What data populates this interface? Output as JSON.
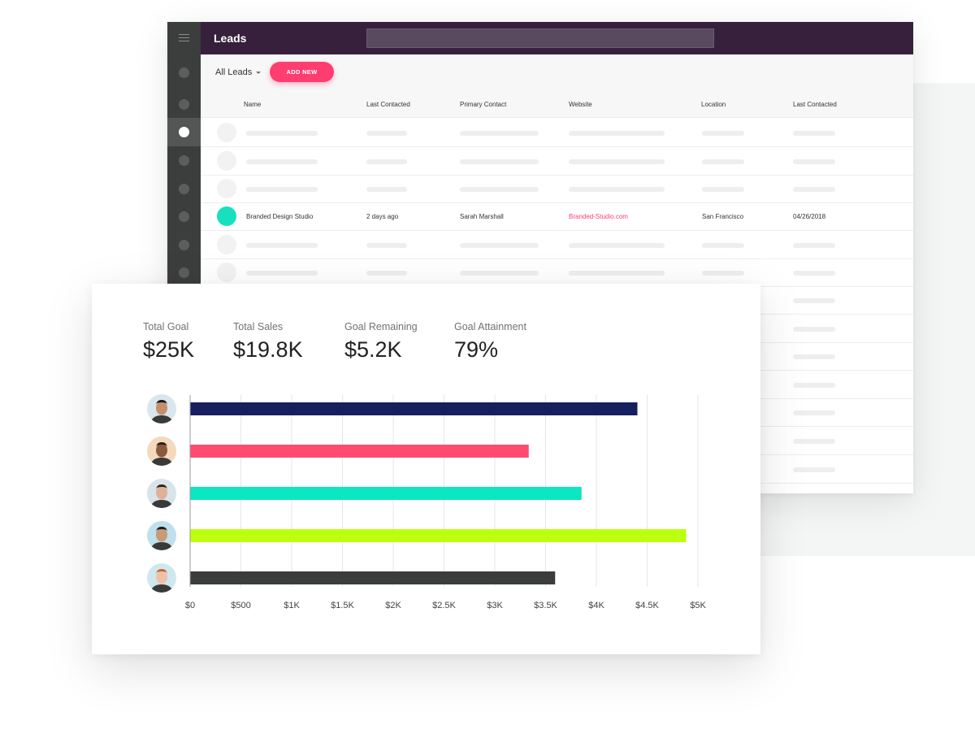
{
  "app": {
    "title": "Leads",
    "filter_label": "All Leads",
    "add_button": "ADD NEW"
  },
  "table": {
    "columns": [
      "Name",
      "Last Contacted",
      "Primary Contact",
      "Website",
      "Location",
      "Last Contacted"
    ],
    "highlight_row": {
      "name": "Branded Design Studio",
      "last_contacted": "2 days ago",
      "primary_contact": "Sarah Marshall",
      "website": "Branded-Studio.com",
      "location": "San Francisco",
      "date": "04/26/2018"
    }
  },
  "stats": [
    {
      "label": "Total Goal",
      "value": "$25K"
    },
    {
      "label": "Total Sales",
      "value": "$19.8K"
    },
    {
      "label": "Goal Remaining",
      "value": "$5.2K"
    },
    {
      "label": "Goal Attainment",
      "value": "79%"
    }
  ],
  "chart_data": {
    "type": "bar",
    "orientation": "horizontal",
    "title": "",
    "xlabel": "",
    "ylabel": "",
    "xlim": [
      0,
      5000
    ],
    "grid": true,
    "x_ticks": [
      "$0",
      "$500",
      "$1K",
      "$1.5K",
      "$2K",
      "$2.5K",
      "$3K",
      "$3.5K",
      "$4K",
      "$4.5K",
      "$5K"
    ],
    "tick_values": [
      0,
      500,
      1000,
      1500,
      2000,
      2500,
      3000,
      3500,
      4000,
      4500,
      5000
    ],
    "categories": [
      "",
      "",
      "",
      "",
      ""
    ],
    "values": [
      4400,
      3330,
      3850,
      4880,
      3590
    ],
    "colors": [
      "#16205f",
      "#ff4b72",
      "#0be6c3",
      "#bcff0f",
      "#3b3c3c"
    ]
  },
  "avatars": [
    {
      "icon": "avatar-woman-1",
      "bg": "#d9e6ec",
      "skin": "#c68f6b",
      "hair": "#1c1414"
    },
    {
      "icon": "avatar-man-1",
      "bg": "#f4d9bd",
      "skin": "#8b5a3c",
      "hair": "#2a1f1a"
    },
    {
      "icon": "avatar-man-2",
      "bg": "#d9e3ea",
      "skin": "#e1b195",
      "hair": "#2a2421"
    },
    {
      "icon": "avatar-man-3",
      "bg": "#bfe0ec",
      "skin": "#c89a76",
      "hair": "#1b1b1b"
    },
    {
      "icon": "avatar-woman-2",
      "bg": "#cfe8f0",
      "skin": "#efc2a6",
      "hair": "#c8662e"
    }
  ]
}
